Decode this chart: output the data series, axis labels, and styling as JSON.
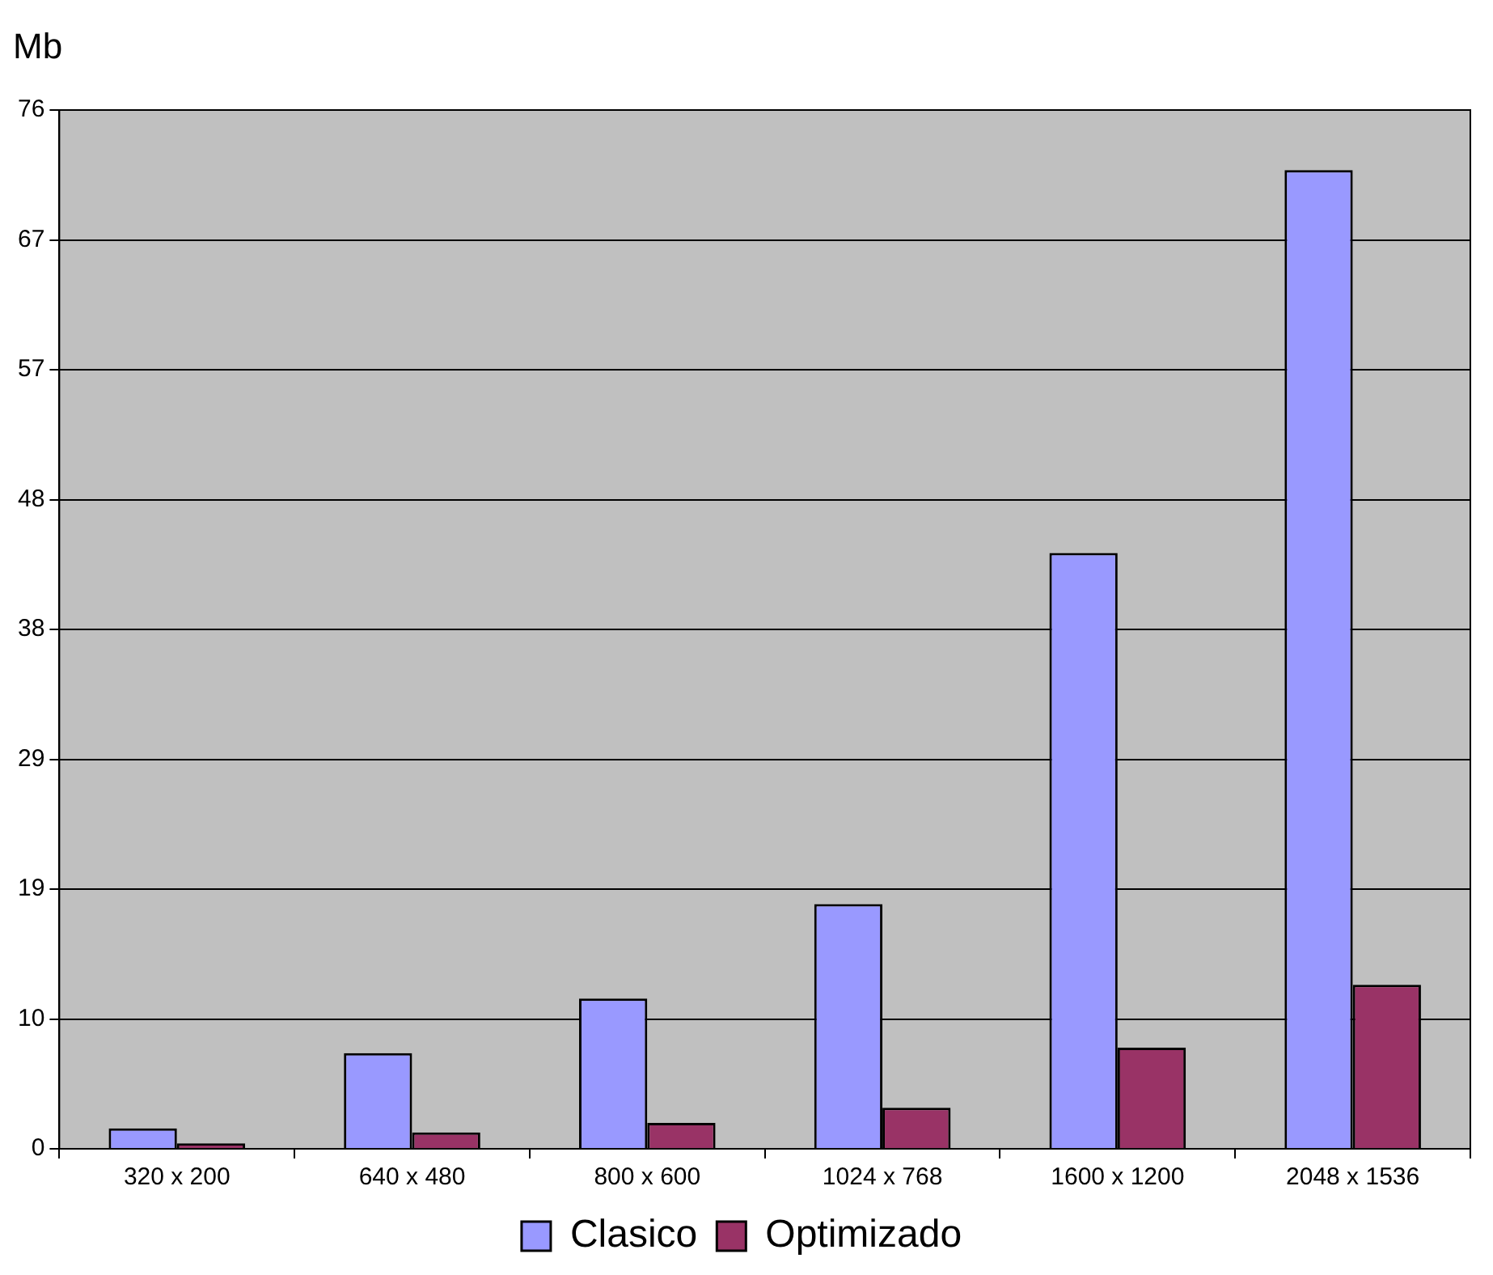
{
  "chart_data": {
    "type": "bar",
    "ylabel": "Mb",
    "categories": [
      "320 x 200",
      "640 x 480",
      "800 x 600",
      "1024 x 768",
      "1600 x 1200",
      "2048 x 1536"
    ],
    "series": [
      {
        "name": "Clasico",
        "color": "#9999ff",
        "values": [
          1.5,
          7.0,
          11.0,
          17.9,
          43.6,
          71.6
        ]
      },
      {
        "name": "Optimizado",
        "color": "#993366",
        "values": [
          0.4,
          1.2,
          1.9,
          3.0,
          7.4,
          12.0
        ]
      }
    ],
    "ylim": [
      0,
      76
    ],
    "yticks": [
      0,
      {
        "value": 9.5,
        "label": "10"
      },
      19,
      {
        "value": 28.5,
        "label": "29"
      },
      38,
      {
        "value": 47.5,
        "label": "48"
      },
      57,
      {
        "value": 66.5,
        "label": "67"
      },
      76
    ],
    "grid": "y",
    "legend": "bottom"
  }
}
